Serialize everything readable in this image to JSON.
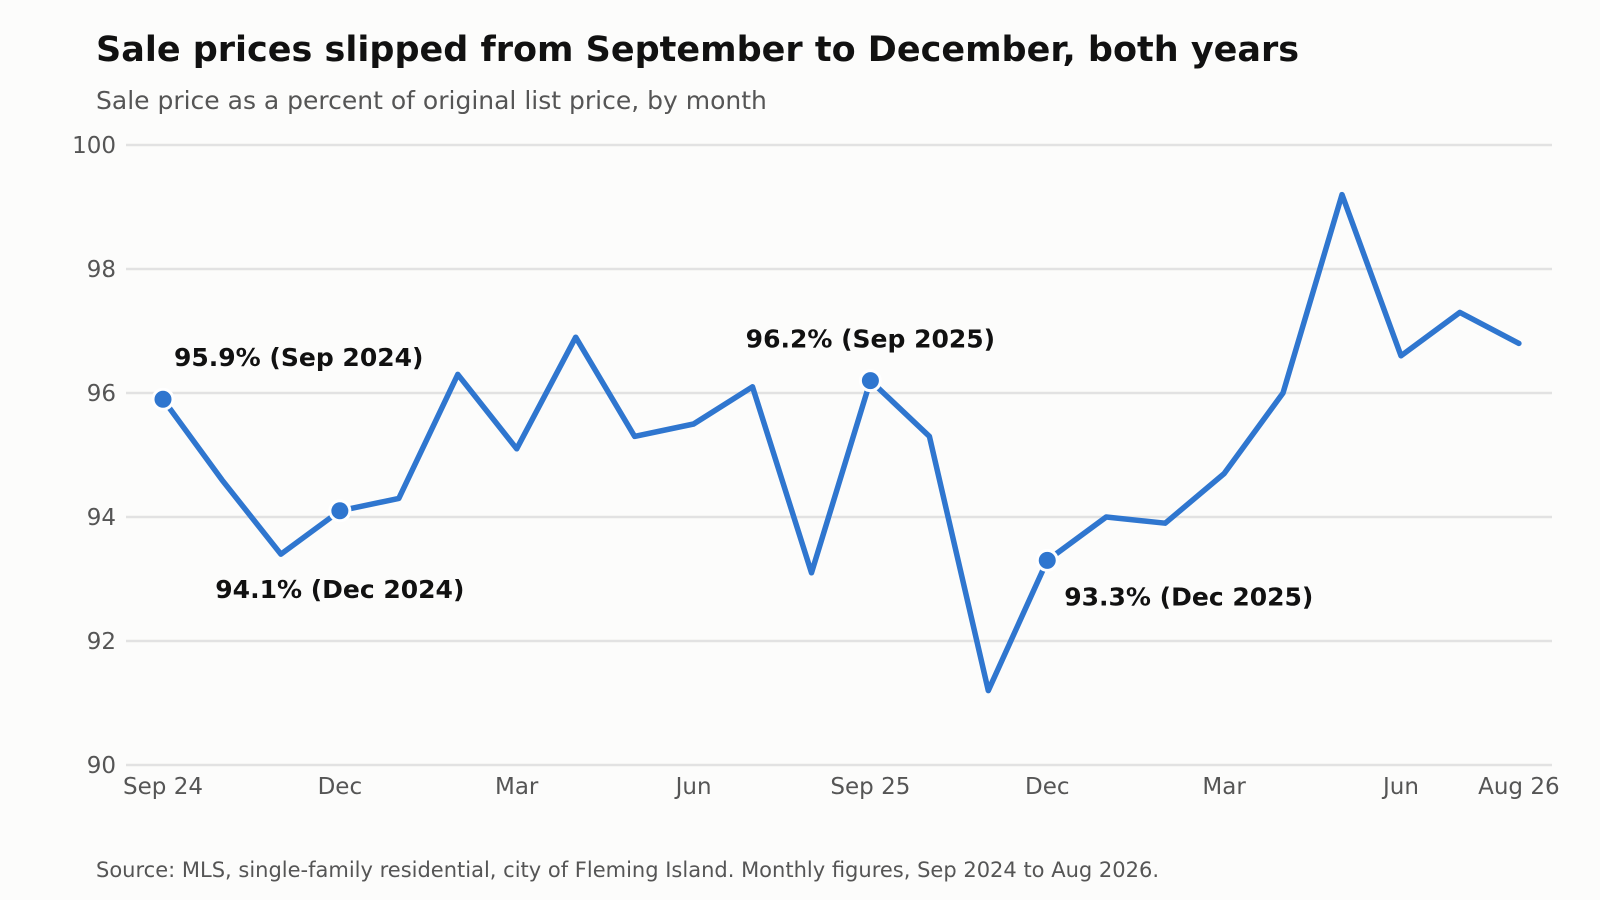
{
  "header": {
    "title": "Sale prices slipped from September to December, both years",
    "subtitle": "Sale price as a percent of original list price, by month"
  },
  "footer": {
    "source": "Source: MLS, single-family residential, city of Fleming Island. Monthly figures, Sep 2024 to Aug 2026."
  },
  "colors": {
    "line": "#2f76cf",
    "grid": "#e2e2e2",
    "text": "#111111",
    "muted": "#555555",
    "background": "#fcfcfb"
  },
  "chart_data": {
    "type": "line",
    "title": "Sale prices slipped from September to December, both years",
    "subtitle": "Sale price as a percent of original list price, by month",
    "xlabel": "",
    "ylabel": "",
    "ylim": [
      90,
      100
    ],
    "yticks": [
      90,
      92,
      94,
      96,
      98,
      100
    ],
    "grid": true,
    "legend": "none",
    "x": [
      "2024-09",
      "2024-10",
      "2024-11",
      "2024-12",
      "2025-01",
      "2025-02",
      "2025-03",
      "2025-04",
      "2025-05",
      "2025-06",
      "2025-07",
      "2025-08",
      "2025-09",
      "2025-10",
      "2025-11",
      "2025-12",
      "2026-01",
      "2026-02",
      "2026-03",
      "2026-04",
      "2026-05",
      "2026-06",
      "2026-07",
      "2026-08"
    ],
    "xtick_labels": [
      {
        "x": "2024-09",
        "label": "Sep 24"
      },
      {
        "x": "2024-12",
        "label": "Dec"
      },
      {
        "x": "2025-03",
        "label": "Mar"
      },
      {
        "x": "2025-06",
        "label": "Jun"
      },
      {
        "x": "2025-09",
        "label": "Sep 25"
      },
      {
        "x": "2025-12",
        "label": "Dec"
      },
      {
        "x": "2026-03",
        "label": "Mar"
      },
      {
        "x": "2026-06",
        "label": "Jun"
      },
      {
        "x": "2026-08",
        "label": "Aug 26"
      }
    ],
    "series": [
      {
        "values": [
          95.9,
          94.6,
          93.4,
          94.1,
          94.3,
          96.3,
          95.1,
          96.9,
          95.3,
          95.5,
          96.1,
          93.1,
          96.2,
          95.3,
          91.2,
          93.3,
          94.0,
          93.9,
          94.7,
          96.0,
          99.2,
          96.6,
          97.3,
          96.8
        ]
      }
    ],
    "annotations": [
      {
        "x": "2024-09",
        "y": 95.9,
        "text": "95.9% (Sep 2024)",
        "placement": "above-right"
      },
      {
        "x": "2024-12",
        "y": 94.1,
        "text": "94.1% (Dec 2024)",
        "placement": "below"
      },
      {
        "x": "2025-09",
        "y": 96.2,
        "text": "96.2% (Sep 2025)",
        "placement": "above"
      },
      {
        "x": "2025-12",
        "y": 93.3,
        "text": "93.3% (Dec 2025)",
        "placement": "below-right"
      }
    ]
  }
}
